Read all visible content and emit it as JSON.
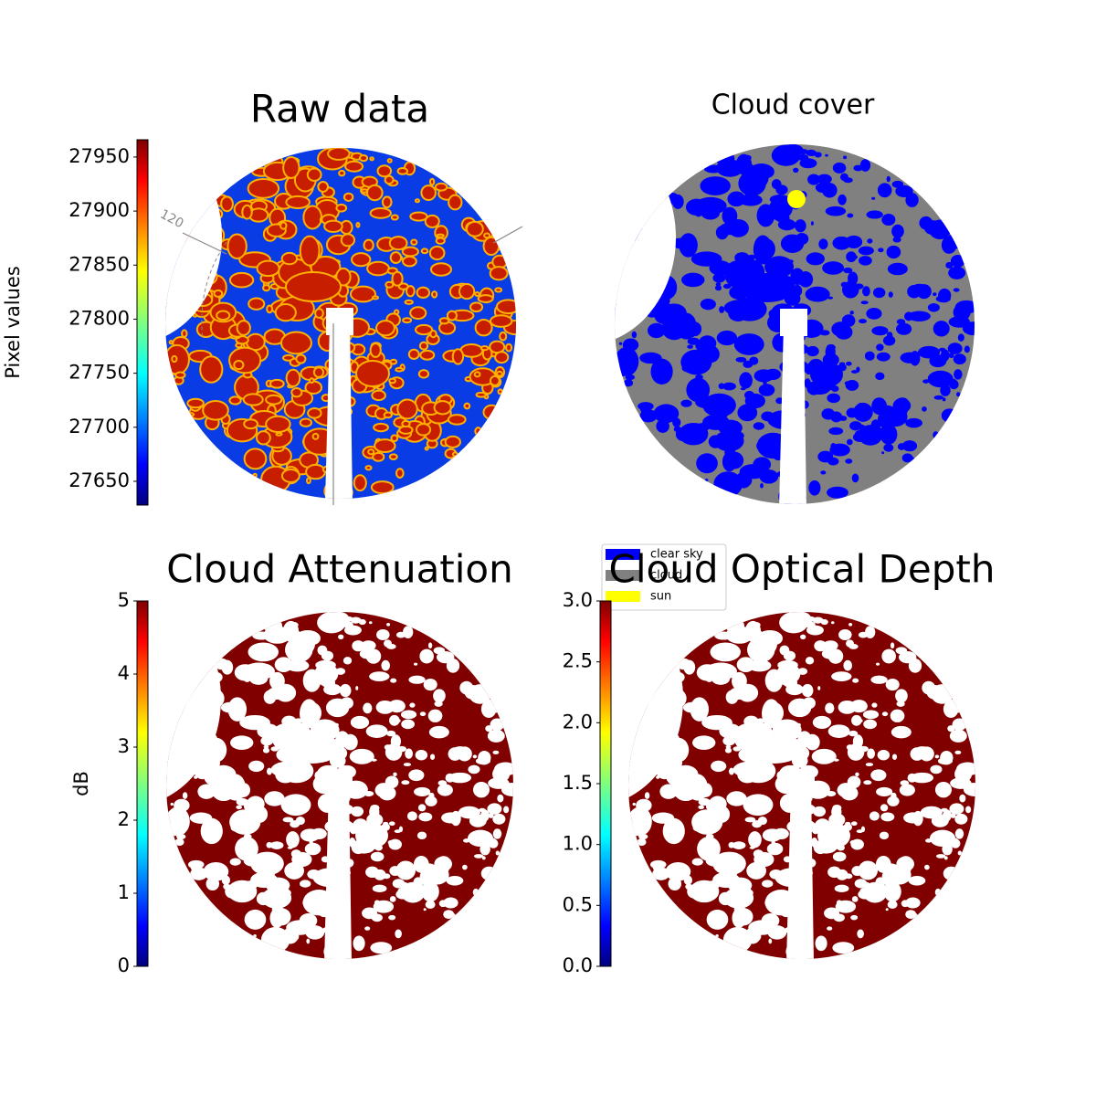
{
  "chart_data": [
    {
      "type": "image",
      "title": "Raw data",
      "colorbar_label": "Pixel values",
      "ylim": [
        27628,
        27966
      ],
      "yticks": [
        27650,
        27700,
        27750,
        27800,
        27850,
        27900,
        27950
      ],
      "colormap": "jet",
      "polar_label": "120"
    },
    {
      "type": "image",
      "title": "Cloud cover",
      "legend": [
        {
          "name": "clear sky",
          "color": "#0000ff"
        },
        {
          "name": "cloud",
          "color": "#808080"
        },
        {
          "name": "sun",
          "color": "#ffff00"
        }
      ]
    },
    {
      "type": "image",
      "title": "Cloud Attenuation",
      "colorbar_label": "dB",
      "ylim": [
        0,
        5
      ],
      "yticks": [
        0,
        1,
        2,
        3,
        4,
        5
      ],
      "colormap": "jet"
    },
    {
      "type": "image",
      "title": "Cloud Optical Depth",
      "ylim": [
        0,
        3
      ],
      "yticks": [
        {
          "value": 0,
          "label": "0.0"
        },
        {
          "value": 0.5,
          "label": "0.5"
        },
        {
          "value": 1,
          "label": "1.0"
        },
        {
          "value": 1.5,
          "label": "1.5"
        },
        {
          "value": 2,
          "label": "2.0"
        },
        {
          "value": 2.5,
          "label": "2.5"
        },
        {
          "value": 3,
          "label": "3.0"
        }
      ],
      "colormap": "jet"
    }
  ]
}
